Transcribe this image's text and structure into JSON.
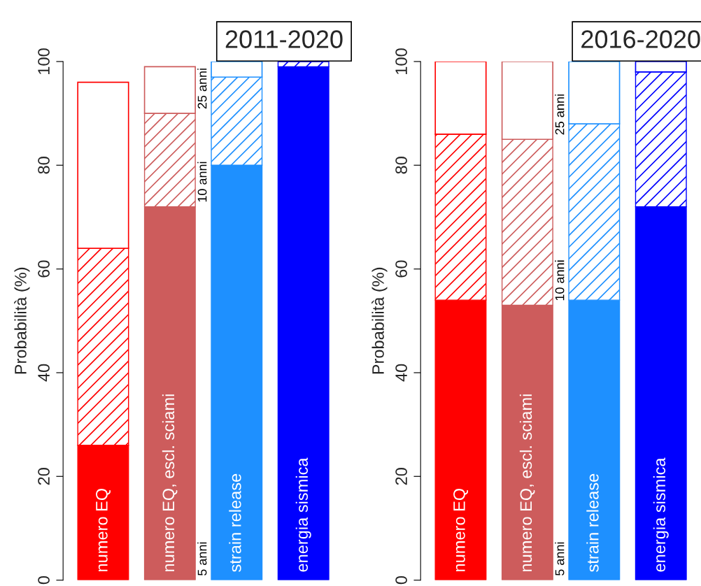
{
  "chart_data": [
    {
      "type": "bar",
      "title": "2011-2020",
      "ylabel": "Probabilità (%)",
      "stacked": true,
      "categories": [
        "numero EQ",
        "numero EQ, escl. sciami",
        "strain release",
        "energia sismica"
      ],
      "ylim": [
        0,
        100
      ],
      "yticks": [
        0,
        20,
        40,
        60,
        80,
        100
      ],
      "legend": false,
      "series": [
        {
          "name": "5 anni",
          "colors": [
            "#ff0000",
            "#cd5c5c",
            "#1e90ff",
            "#0000ff"
          ],
          "values": [
            26,
            72,
            80,
            99
          ]
        },
        {
          "name": "10 anni",
          "colors": [
            "#ff0000",
            "#cd5c5c",
            "#1e90ff",
            "#0000ff"
          ],
          "values": [
            38,
            18,
            17,
            1
          ]
        },
        {
          "name": "25 anni",
          "colors": [
            "#ff0000",
            "#cd5c5c",
            "#1e90ff",
            "#0000ff"
          ],
          "values": [
            32,
            9,
            3,
            0
          ]
        }
      ]
    },
    {
      "type": "bar",
      "title": "2016-2020",
      "ylabel": "Probabilità (%)",
      "stacked": true,
      "categories": [
        "numero EQ",
        "numero EQ, escl. sciami",
        "strain release",
        "energia sismica"
      ],
      "ylim": [
        0,
        100
      ],
      "yticks": [
        0,
        20,
        40,
        60,
        80,
        100
      ],
      "legend": false,
      "series": [
        {
          "name": "5 anni",
          "colors": [
            "#ff0000",
            "#cd5c5c",
            "#1e90ff",
            "#0000ff"
          ],
          "values": [
            54,
            53,
            54,
            72
          ]
        },
        {
          "name": "10 anni",
          "colors": [
            "#ff0000",
            "#cd5c5c",
            "#1e90ff",
            "#0000ff"
          ],
          "values": [
            32,
            32,
            34,
            26
          ]
        },
        {
          "name": "25 anni",
          "colors": [
            "#ff0000",
            "#cd5c5c",
            "#1e90ff",
            "#0000ff"
          ],
          "values": [
            14,
            15,
            12,
            2
          ]
        }
      ]
    }
  ]
}
